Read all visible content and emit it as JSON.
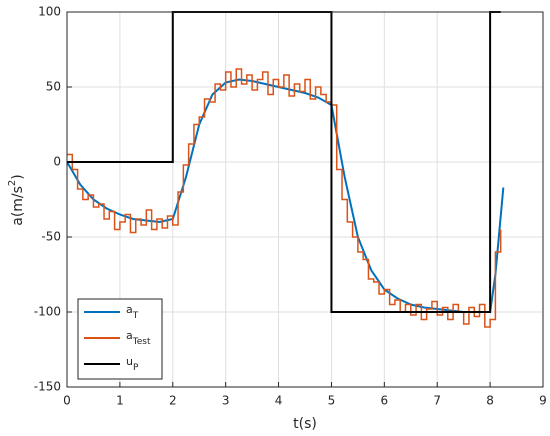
{
  "chart_data": {
    "type": "line",
    "xlabel": "t(s)",
    "ylabel": "a(m/s",
    "ylabel_sup": "2",
    "ylabel_end": ")",
    "xlim": [
      0,
      9
    ],
    "xticks": [
      0,
      1,
      2,
      3,
      4,
      5,
      6,
      7,
      8,
      9
    ],
    "ylim": [
      -150,
      100
    ],
    "yticks": [
      -150,
      -100,
      -50,
      0,
      50,
      100
    ],
    "grid": true,
    "legend": "lower left",
    "series": [
      {
        "name": "a",
        "subscript": "T",
        "color": "#0072bd",
        "style": "line",
        "x": [
          0,
          0.25,
          0.5,
          0.75,
          1,
          1.25,
          1.5,
          1.75,
          2,
          2.25,
          2.5,
          2.75,
          3,
          3.25,
          3.5,
          3.75,
          4,
          4.25,
          4.5,
          4.75,
          5,
          5.25,
          5.5,
          5.75,
          6,
          6.25,
          6.5,
          6.75,
          7,
          7.25,
          7.5,
          7.75,
          8,
          8.1,
          8.25
        ],
        "values": [
          0,
          -15,
          -25,
          -31,
          -35,
          -38,
          -39,
          -40,
          -38,
          -10,
          25,
          45,
          53,
          55,
          54,
          52,
          50,
          48,
          46,
          43,
          38,
          -10,
          -50,
          -72,
          -85,
          -91,
          -95,
          -97,
          -98,
          -99,
          -100,
          -100,
          -100,
          -75,
          -17
        ]
      },
      {
        "name": "a",
        "subscript": "Test",
        "color": "#d95319",
        "style": "stairs",
        "x": [
          0,
          0.1,
          0.2,
          0.3,
          0.4,
          0.5,
          0.6,
          0.7,
          0.8,
          0.9,
          1.0,
          1.1,
          1.2,
          1.3,
          1.4,
          1.5,
          1.6,
          1.7,
          1.8,
          1.9,
          2.0,
          2.1,
          2.2,
          2.3,
          2.4,
          2.5,
          2.6,
          2.7,
          2.8,
          2.9,
          3.0,
          3.1,
          3.2,
          3.3,
          3.4,
          3.5,
          3.6,
          3.7,
          3.8,
          3.9,
          4.0,
          4.1,
          4.2,
          4.3,
          4.4,
          4.5,
          4.6,
          4.7,
          4.8,
          4.9,
          5.0,
          5.1,
          5.2,
          5.3,
          5.4,
          5.5,
          5.6,
          5.7,
          5.8,
          5.9,
          6.0,
          6.1,
          6.2,
          6.3,
          6.4,
          6.5,
          6.6,
          6.7,
          6.8,
          6.9,
          7.0,
          7.1,
          7.2,
          7.3,
          7.4,
          7.5,
          7.6,
          7.7,
          7.8,
          7.9,
          8.0,
          8.1,
          8.2
        ],
        "values": [
          5,
          -5,
          -18,
          -25,
          -22,
          -30,
          -28,
          -38,
          -33,
          -45,
          -40,
          -35,
          -47,
          -38,
          -42,
          -32,
          -45,
          -38,
          -44,
          -36,
          -42,
          -20,
          -2,
          12,
          25,
          30,
          42,
          40,
          52,
          48,
          60,
          50,
          62,
          52,
          58,
          48,
          55,
          60,
          45,
          55,
          50,
          58,
          44,
          52,
          47,
          55,
          42,
          50,
          45,
          40,
          38,
          -5,
          -25,
          -40,
          -50,
          -60,
          -65,
          -78,
          -80,
          -88,
          -85,
          -95,
          -92,
          -100,
          -95,
          -102,
          -95,
          -105,
          -98,
          -93,
          -102,
          -97,
          -105,
          -95,
          -100,
          -108,
          -97,
          -103,
          -95,
          -110,
          -105,
          -60,
          -45
        ]
      },
      {
        "name": "u",
        "subscript": "P",
        "color": "#000000",
        "style": "line",
        "x": [
          0,
          2,
          2,
          5,
          5,
          8,
          8,
          8.2
        ],
        "values": [
          0,
          0,
          100,
          100,
          -100,
          -100,
          100,
          100
        ]
      }
    ]
  }
}
